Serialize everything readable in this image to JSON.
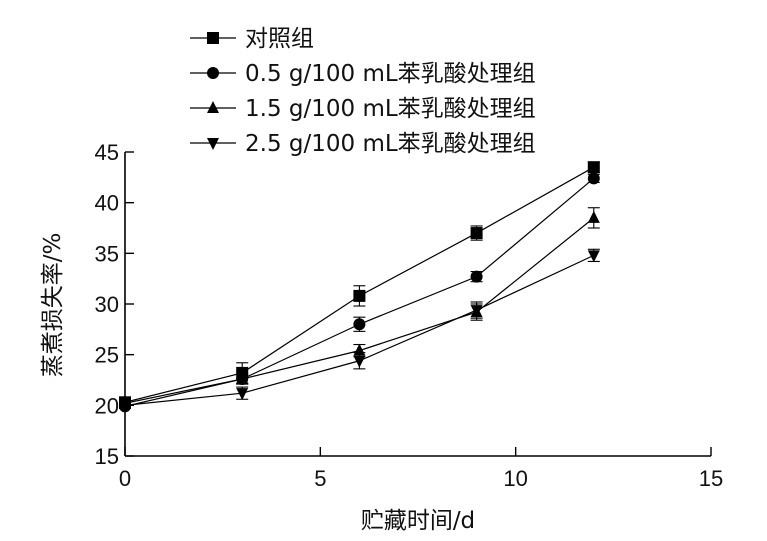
{
  "chart_data": {
    "type": "line",
    "title": "",
    "xlabel": "贮藏时间/d",
    "ylabel": "蒸煮损失率/%",
    "xlim": [
      0,
      15
    ],
    "ylim": [
      15,
      45
    ],
    "xticks": [
      "0",
      "5",
      "10",
      "15"
    ],
    "yticks": [
      "15",
      "20",
      "25",
      "30",
      "35",
      "40",
      "45"
    ],
    "legend_position": "top",
    "x": [
      0,
      3,
      6,
      9,
      12
    ],
    "series": [
      {
        "name": "对照组",
        "marker": "square",
        "values": [
          20.3,
          23.2,
          30.8,
          37.0,
          43.5
        ],
        "errors": [
          0.3,
          1.0,
          1.0,
          0.7,
          0.5
        ]
      },
      {
        "name": "0.5 g/100 mL苯乳酸处理组",
        "marker": "circle",
        "values": [
          19.9,
          22.6,
          28.0,
          32.7,
          42.4
        ],
        "errors": [
          0.2,
          0.5,
          0.7,
          0.5,
          0.4
        ]
      },
      {
        "name": "1.5 g/100 mL苯乳酸处理组",
        "marker": "triangle-up",
        "values": [
          20.2,
          22.6,
          25.4,
          29.2,
          38.5
        ],
        "errors": [
          0.3,
          0.5,
          0.6,
          0.8,
          1.0
        ]
      },
      {
        "name": "2.5 g/100 mL苯乳酸处理组",
        "marker": "triangle-down",
        "values": [
          20.0,
          21.2,
          24.4,
          29.4,
          34.8
        ],
        "errors": [
          0.3,
          0.6,
          0.8,
          0.8,
          0.6
        ]
      }
    ]
  }
}
